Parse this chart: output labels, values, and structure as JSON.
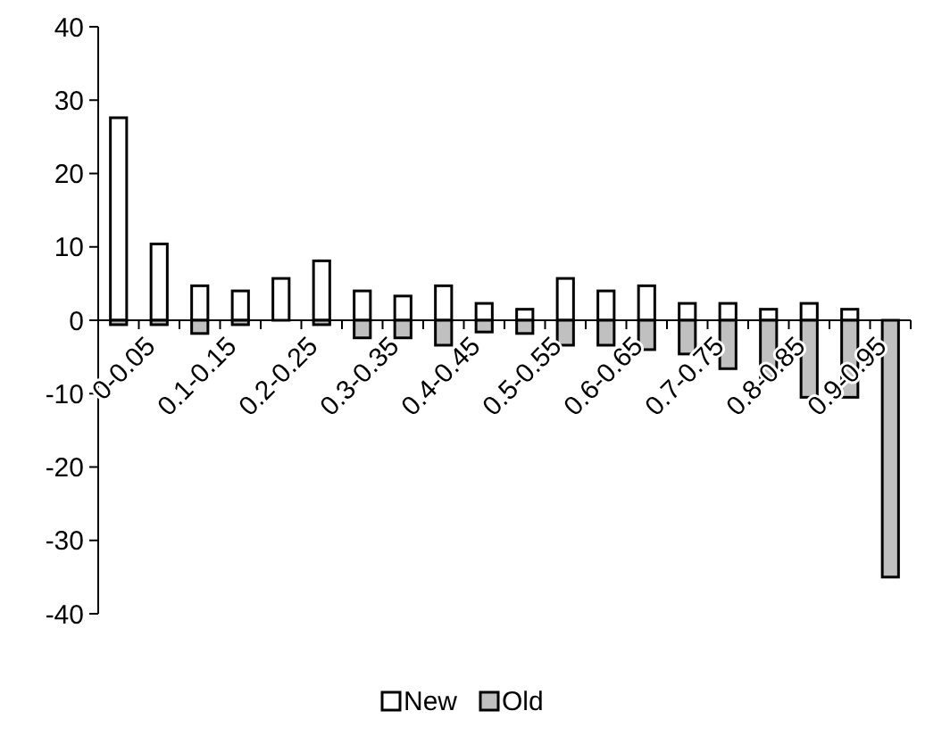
{
  "chart_data": {
    "type": "bar",
    "categories": [
      "0-0.05",
      null,
      "0.1-0.15",
      null,
      "0.2-0.25",
      null,
      "0.3-0.35",
      null,
      "0.4-0.45",
      null,
      "0.5-0.55",
      null,
      "0.6-0.65",
      null,
      "0.7-0.75",
      null,
      "0.8-0.85",
      null,
      "0.9-0.95",
      null
    ],
    "series": [
      {
        "name": "New",
        "color": "#ffffff",
        "values": [
          27.6,
          10.4,
          4.7,
          4.0,
          5.7,
          8.1,
          4.0,
          3.3,
          4.7,
          2.3,
          1.5,
          5.7,
          4.0,
          4.7,
          2.3,
          2.3,
          1.5,
          2.3,
          1.5,
          null
        ]
      },
      {
        "name": "Old",
        "color": "#c0c0c0",
        "values": [
          -0.6,
          -0.6,
          -1.8,
          -0.6,
          null,
          -0.6,
          -2.4,
          -2.4,
          -3.4,
          -1.6,
          -1.8,
          -3.4,
          -3.4,
          -4.0,
          -4.6,
          -6.6,
          -7.8,
          -10.5,
          -10.5,
          -35.0
        ]
      }
    ],
    "ylim": [
      -40,
      40
    ],
    "yticks": [
      -40,
      -30,
      -20,
      -10,
      0,
      10,
      20,
      30,
      40
    ],
    "grid": false,
    "legend": "bottom",
    "stacked": true
  }
}
